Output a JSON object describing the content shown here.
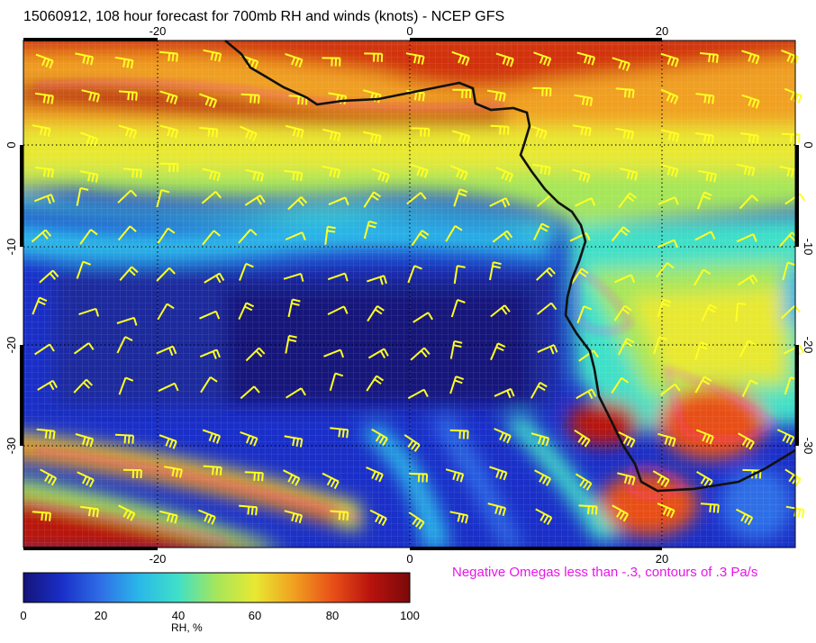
{
  "title": "15060912, 108 hour forecast for 700mb RH and winds (knots) - NCEP GFS",
  "caption": "Negative Omegas less than -.3, contours of .3 Pa/s",
  "map": {
    "lon_range": [
      -31,
      30.5
    ],
    "lat_range": [
      -40.5,
      10.5
    ],
    "lon_ticks": [
      "-20",
      "0",
      "20"
    ],
    "lat_ticks": [
      "0",
      "-10",
      "-20",
      "-30"
    ],
    "colors": {
      "coastline": "#111111",
      "wind_barbs": "#ffff22",
      "omega_contours": "#ff22ff",
      "graticule": "#000000"
    }
  },
  "colorbar": {
    "label": "RH, %",
    "ticks": [
      "0",
      "20",
      "40",
      "60",
      "80",
      "100"
    ],
    "colors": [
      "#14147a",
      "#1a2fc8",
      "#2f6ee6",
      "#2ab8e8",
      "#3fe0c8",
      "#a6e65a",
      "#e8e832",
      "#f0a020",
      "#e85018",
      "#b8120e",
      "#7a0a0a"
    ]
  }
}
